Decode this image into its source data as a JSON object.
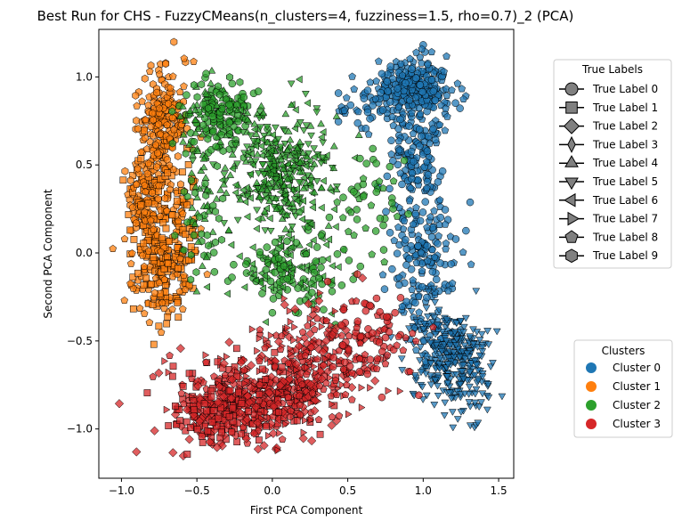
{
  "chart_data": {
    "type": "scatter",
    "title": "Best Run for CHS - FuzzyCMeans(n_clusters=4, fuzziness=1.5, rho=0.7)_2 (PCA)",
    "xlabel": "First PCA Component",
    "ylabel": "Second PCA Component",
    "xlim": [
      -1.15,
      1.6
    ],
    "ylim": [
      -1.28,
      1.27
    ],
    "xticks": [
      -1.0,
      -0.5,
      0.0,
      0.5,
      1.0,
      1.5
    ],
    "yticks": [
      -1.0,
      -0.5,
      0.0,
      0.5,
      1.0
    ],
    "xtick_labels": [
      "−1.0",
      "−0.5",
      "0.0",
      "0.5",
      "1.0",
      "1.5"
    ],
    "ytick_labels": [
      "−1.0",
      "−0.5",
      "0.0",
      "0.5",
      "1.0"
    ],
    "grid": false,
    "cluster_legend": {
      "title": "Clusters",
      "placement": "right-lower",
      "entries": [
        {
          "name": "Cluster 0",
          "color": "#1f77b4"
        },
        {
          "name": "Cluster 1",
          "color": "#ff7f0e"
        },
        {
          "name": "Cluster 2",
          "color": "#2ca02c"
        },
        {
          "name": "Cluster 3",
          "color": "#d62728"
        }
      ]
    },
    "label_legend": {
      "title": "True Labels",
      "placement": "right-upper",
      "entries": [
        {
          "name": "True Label 0",
          "marker": "circle"
        },
        {
          "name": "True Label 1",
          "marker": "square"
        },
        {
          "name": "True Label 2",
          "marker": "diamond"
        },
        {
          "name": "True Label 3",
          "marker": "thin-diamond"
        },
        {
          "name": "True Label 4",
          "marker": "triangle-up"
        },
        {
          "name": "True Label 5",
          "marker": "triangle-down"
        },
        {
          "name": "True Label 6",
          "marker": "triangle-left"
        },
        {
          "name": "True Label 7",
          "marker": "triangle-right"
        },
        {
          "name": "True Label 8",
          "marker": "pentagon"
        },
        {
          "name": "True Label 9",
          "marker": "hexagon"
        }
      ]
    },
    "series": [
      {
        "cluster": 0,
        "color": "#1f77b4",
        "regions": [
          {
            "cx": 0.95,
            "cy": 0.95,
            "sx": 0.12,
            "sy": 0.08,
            "n": 260,
            "markers": [
              "circle",
              "pentagon"
            ]
          },
          {
            "cx": 0.95,
            "cy": 0.55,
            "sx": 0.1,
            "sy": 0.15,
            "n": 140,
            "markers": [
              "pentagon",
              "circle"
            ]
          },
          {
            "cx": 1.0,
            "cy": 0.0,
            "sx": 0.1,
            "sy": 0.18,
            "n": 150,
            "markers": [
              "pentagon",
              "circle"
            ]
          },
          {
            "cx": 1.05,
            "cy": -0.45,
            "sx": 0.12,
            "sy": 0.12,
            "n": 100,
            "markers": [
              "pentagon",
              "triangle-down"
            ]
          },
          {
            "cx": 1.22,
            "cy": -0.62,
            "sx": 0.13,
            "sy": 0.14,
            "n": 260,
            "markers": [
              "triangle-down"
            ]
          },
          {
            "cx": 0.6,
            "cy": 0.85,
            "sx": 0.12,
            "sy": 0.07,
            "n": 40,
            "markers": [
              "circle",
              "pentagon"
            ]
          }
        ]
      },
      {
        "cluster": 1,
        "color": "#ff7f0e",
        "regions": [
          {
            "cx": -0.72,
            "cy": 0.75,
            "sx": 0.08,
            "sy": 0.14,
            "n": 200,
            "markers": [
              "pentagon",
              "hexagon"
            ]
          },
          {
            "cx": -0.82,
            "cy": 0.3,
            "sx": 0.08,
            "sy": 0.15,
            "n": 170,
            "markers": [
              "pentagon",
              "hexagon",
              "square"
            ]
          },
          {
            "cx": -0.75,
            "cy": -0.1,
            "sx": 0.09,
            "sy": 0.15,
            "n": 170,
            "markers": [
              "square",
              "pentagon"
            ]
          },
          {
            "cx": -0.6,
            "cy": 0.1,
            "sx": 0.07,
            "sy": 0.2,
            "n": 90,
            "markers": [
              "pentagon",
              "square"
            ]
          }
        ]
      },
      {
        "cluster": 2,
        "color": "#2ca02c",
        "regions": [
          {
            "cx": -0.35,
            "cy": 0.8,
            "sx": 0.14,
            "sy": 0.1,
            "n": 180,
            "markers": [
              "hexagon",
              "circle",
              "triangle-up"
            ]
          },
          {
            "cx": 0.05,
            "cy": 0.45,
            "sx": 0.18,
            "sy": 0.17,
            "n": 360,
            "markers": [
              "triangle-up",
              "triangle-left",
              "triangle-down"
            ]
          },
          {
            "cx": 0.1,
            "cy": -0.1,
            "sx": 0.17,
            "sy": 0.11,
            "n": 160,
            "markers": [
              "triangle-left",
              "circle"
            ]
          },
          {
            "cx": 0.6,
            "cy": 0.2,
            "sx": 0.15,
            "sy": 0.2,
            "n": 55,
            "markers": [
              "circle",
              "pentagon"
            ]
          },
          {
            "cx": -0.45,
            "cy": 0.3,
            "sx": 0.08,
            "sy": 0.2,
            "n": 80,
            "markers": [
              "hexagon",
              "triangle-up"
            ]
          }
        ]
      },
      {
        "cluster": 3,
        "color": "#d62728",
        "regions": [
          {
            "cx": -0.1,
            "cy": -0.82,
            "sx": 0.26,
            "sy": 0.12,
            "n": 460,
            "markers": [
              "diamond",
              "triangle-right",
              "square",
              "pentagon"
            ]
          },
          {
            "cx": 0.3,
            "cy": -0.6,
            "sx": 0.2,
            "sy": 0.15,
            "n": 200,
            "markers": [
              "pentagon",
              "triangle-right",
              "diamond"
            ]
          },
          {
            "cx": -0.4,
            "cy": -0.95,
            "sx": 0.15,
            "sy": 0.08,
            "n": 120,
            "markers": [
              "diamond",
              "square"
            ]
          },
          {
            "cx": 0.65,
            "cy": -0.5,
            "sx": 0.15,
            "sy": 0.14,
            "n": 90,
            "markers": [
              "pentagon",
              "circle"
            ]
          }
        ]
      }
    ]
  }
}
